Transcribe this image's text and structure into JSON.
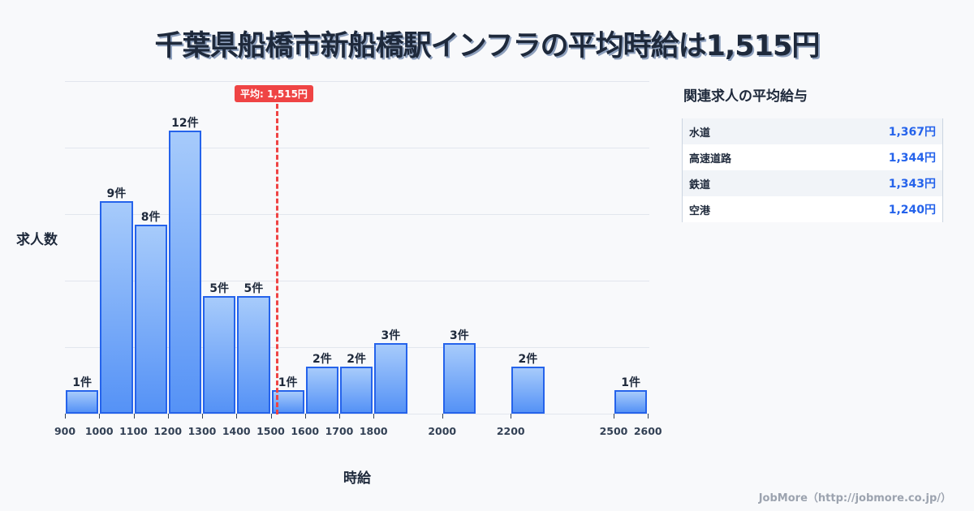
{
  "title": "千葉県船橋市新船橋駅インフラの平均時給は1,515円",
  "chart_data": {
    "type": "bar",
    "title": "千葉県船橋市新船橋駅インフラの平均時給は1,515円",
    "xlabel": "時給",
    "ylabel": "求人数",
    "bins": [
      {
        "start": 900,
        "end": 1000,
        "count": 1,
        "label": "1件"
      },
      {
        "start": 1000,
        "end": 1100,
        "count": 9,
        "label": "9件"
      },
      {
        "start": 1100,
        "end": 1200,
        "count": 8,
        "label": "8件"
      },
      {
        "start": 1200,
        "end": 1300,
        "count": 12,
        "label": "12件"
      },
      {
        "start": 1300,
        "end": 1400,
        "count": 5,
        "label": "5件"
      },
      {
        "start": 1400,
        "end": 1500,
        "count": 5,
        "label": "5件"
      },
      {
        "start": 1500,
        "end": 1600,
        "count": 1,
        "label": "1件"
      },
      {
        "start": 1600,
        "end": 1700,
        "count": 2,
        "label": "2件"
      },
      {
        "start": 1700,
        "end": 1800,
        "count": 2,
        "label": "2件"
      },
      {
        "start": 1800,
        "end": 1900,
        "count": 3,
        "label": "3件"
      },
      {
        "start": 2000,
        "end": 2100,
        "count": 3,
        "label": "3件"
      },
      {
        "start": 2200,
        "end": 2300,
        "count": 2,
        "label": "2件"
      },
      {
        "start": 2500,
        "end": 2600,
        "count": 1,
        "label": "1件"
      }
    ],
    "categories": [
      "900-1000",
      "1000-1100",
      "1100-1200",
      "1200-1300",
      "1300-1400",
      "1400-1500",
      "1500-1600",
      "1600-1700",
      "1700-1800",
      "1800-1900",
      "2000-2100",
      "2200-2300",
      "2500-2600"
    ],
    "values": [
      1,
      9,
      8,
      12,
      5,
      5,
      1,
      2,
      2,
      3,
      3,
      2,
      1
    ],
    "x_ticks": [
      "900",
      "1000",
      "1100",
      "1200",
      "1300",
      "1400",
      "1500",
      "1600",
      "1700",
      "1800",
      "2000",
      "2200",
      "2500",
      "2600"
    ],
    "mean": 1515,
    "mean_label": "平均: 1,515円",
    "grid": true,
    "ylim": [
      0,
      14
    ]
  },
  "axes": {
    "ylabel": "求人数",
    "xlabel": "時給"
  },
  "mean_badge": "平均: 1,515円",
  "related": {
    "title": "関連求人の平均給与",
    "rows": [
      {
        "name": "水道",
        "value": "1,367円"
      },
      {
        "name": "高速道路",
        "value": "1,344円"
      },
      {
        "name": "鉄道",
        "value": "1,343円"
      },
      {
        "name": "空港",
        "value": "1,240円"
      }
    ]
  },
  "footer": "JobMore（http://jobmore.co.jp/）",
  "colors": {
    "bar_border": "#2563eb",
    "bar_top": "#a7cbfb",
    "bar_bottom": "#5592f6",
    "mean_line": "#ef4444",
    "value_text": "#2563eb"
  }
}
